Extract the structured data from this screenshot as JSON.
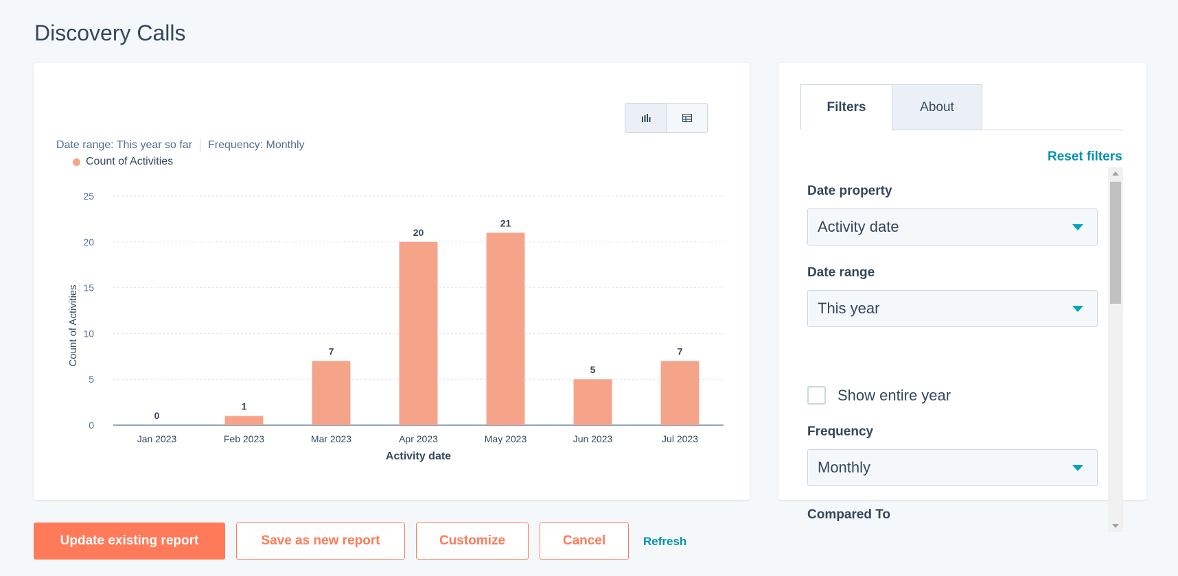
{
  "page": {
    "title": "Discovery Calls"
  },
  "chart": {
    "meta_date_range": "Date range: This year so far",
    "meta_frequency": "Frequency: Monthly",
    "view_toggle": {
      "active": "chart",
      "icons": [
        "bar-chart-icon",
        "table-icon"
      ]
    }
  },
  "chart_data": {
    "type": "bar",
    "categories": [
      "Jan 2023",
      "Feb 2023",
      "Mar 2023",
      "Apr 2023",
      "May 2023",
      "Jun 2023",
      "Jul 2023"
    ],
    "series": [
      {
        "name": "Count of Activities",
        "values": [
          0,
          1,
          7,
          20,
          21,
          5,
          7
        ],
        "color": "#f5a48a"
      }
    ],
    "xlabel": "Activity date",
    "ylabel": "Count of Activities",
    "ylim": [
      0,
      25
    ],
    "yticks": [
      0,
      5,
      10,
      15,
      20,
      25
    ],
    "grid": true,
    "legend": "top-left",
    "data_labels": true
  },
  "filters": {
    "tabs": [
      {
        "label": "Filters",
        "active": true
      },
      {
        "label": "About",
        "active": false
      }
    ],
    "reset_label": "Reset filters",
    "date_property": {
      "label": "Date property",
      "value": "Activity date"
    },
    "date_range": {
      "label": "Date range",
      "value": "This year"
    },
    "show_entire_year": {
      "label": "Show entire year",
      "checked": false
    },
    "frequency": {
      "label": "Frequency",
      "value": "Monthly"
    },
    "compared_to": {
      "label": "Compared To"
    }
  },
  "actions": {
    "update_label": "Update existing report",
    "save_label": "Save as new report",
    "customize_label": "Customize",
    "cancel_label": "Cancel",
    "refresh_label": "Refresh"
  },
  "colors": {
    "accent": "#ff7a59",
    "link": "#0091ae",
    "caret": "#00a4bd",
    "bar": "#f5a48a",
    "text": "#33475b"
  }
}
